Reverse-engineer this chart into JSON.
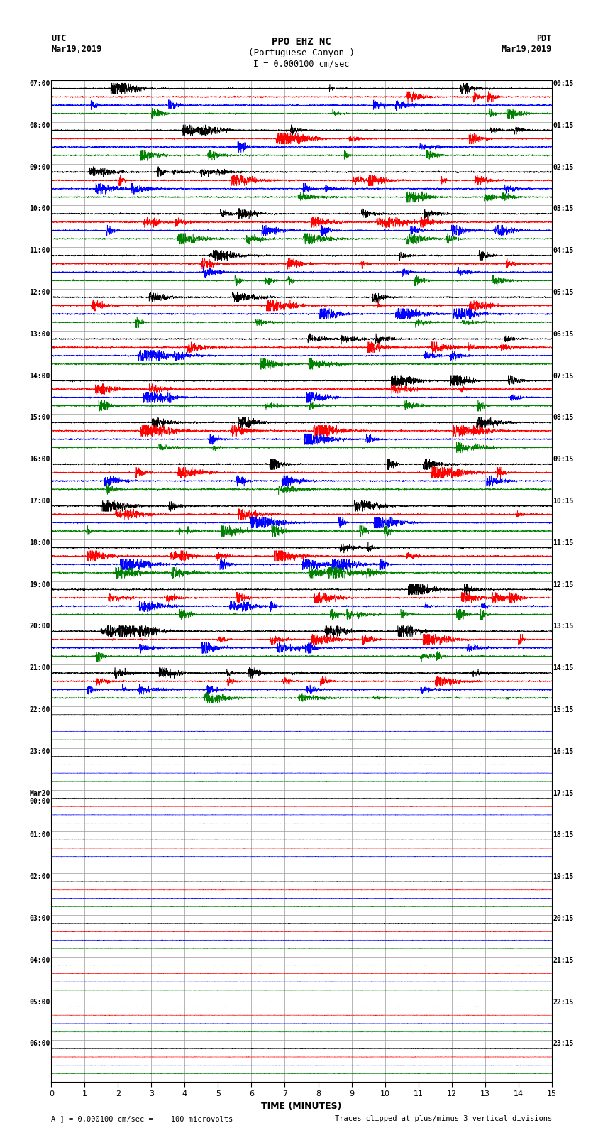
{
  "title_line1": "PPO EHZ NC",
  "title_line2": "(Portuguese Canyon )",
  "scale_label": "I = 0.000100 cm/sec",
  "xlabel": "TIME (MINUTES)",
  "footer_left": "A ] = 0.000100 cm/sec =    100 microvolts",
  "footer_right": "Traces clipped at plus/minus 3 vertical divisions",
  "left_labels": [
    "07:00",
    "08:00",
    "09:00",
    "10:00",
    "11:00",
    "12:00",
    "13:00",
    "14:00",
    "15:00",
    "16:00",
    "17:00",
    "18:00",
    "19:00",
    "20:00",
    "21:00",
    "22:00",
    "23:00",
    "Mar20\n00:00",
    "01:00",
    "02:00",
    "03:00",
    "04:00",
    "05:00",
    "06:00"
  ],
  "right_labels": [
    "00:15",
    "01:15",
    "02:15",
    "03:15",
    "04:15",
    "05:15",
    "06:15",
    "07:15",
    "08:15",
    "09:15",
    "10:15",
    "11:15",
    "12:15",
    "13:15",
    "14:15",
    "15:15",
    "16:15",
    "17:15",
    "18:15",
    "19:15",
    "20:15",
    "21:15",
    "22:15",
    "23:15"
  ],
  "n_rows": 24,
  "n_traces_per_row": 4,
  "time_minutes": 15,
  "colors": [
    "black",
    "red",
    "blue",
    "green"
  ],
  "bg_color": "white",
  "grid_color": "#999999",
  "active_rows": 15,
  "figwidth": 8.5,
  "figheight": 16.13,
  "dpi": 100
}
